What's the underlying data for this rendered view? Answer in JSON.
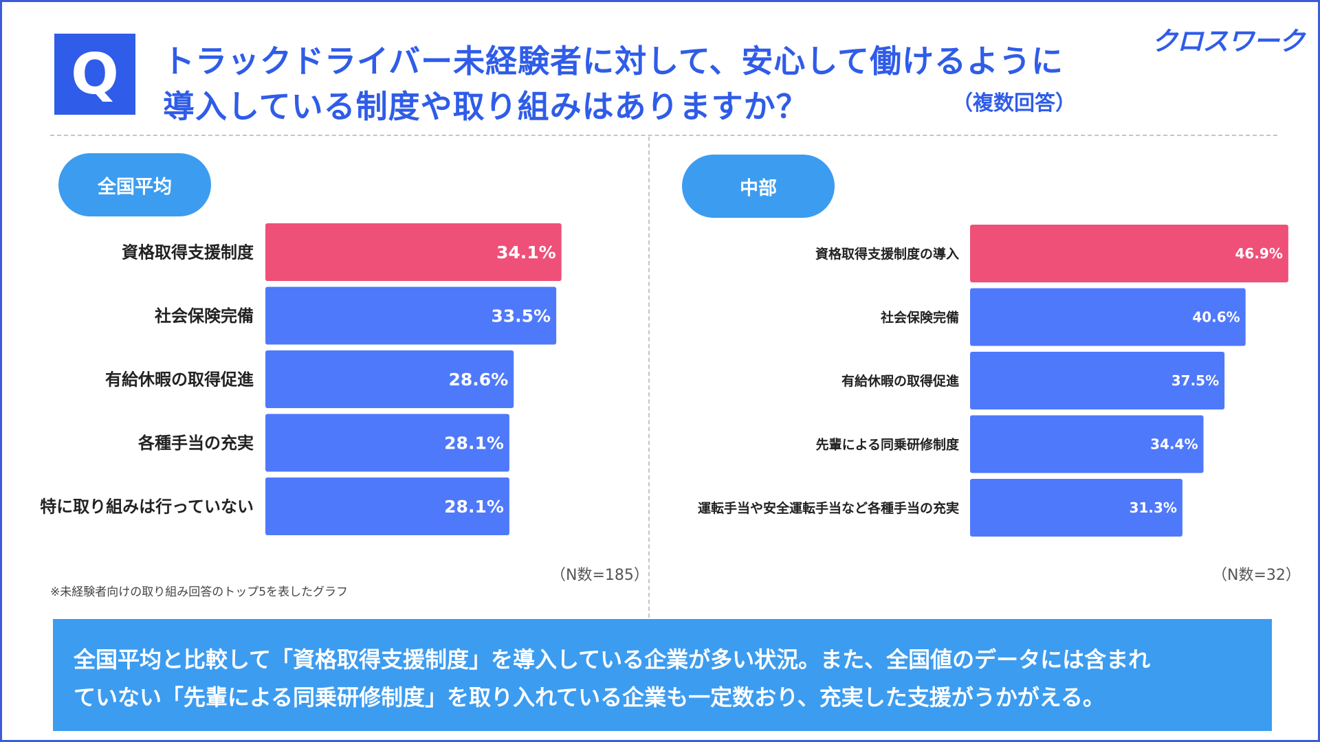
{
  "header": {
    "q_icon": "Q",
    "title_line1": "トラックドライバー未経験者に対して、安心して働けるように",
    "title_line2": "導入している制度や取り組みはありますか？",
    "title_note": "（複数回答）",
    "brand": "クロスワーク"
  },
  "colors": {
    "primary": "#2f5ce8",
    "highlight_bar": "#ef5078",
    "bar": "#4f79fb",
    "pill": "#3c9cf0"
  },
  "chart_data": [
    {
      "type": "bar",
      "orientation": "horizontal",
      "panel_label": "全国平均",
      "categories": [
        "資格取得支援制度",
        "社会保険完備",
        "有給休暇の取得促進",
        "各種手当の充実",
        "特に取り組みは行っていない"
      ],
      "values": [
        34.1,
        33.5,
        28.6,
        28.1,
        28.1
      ],
      "value_labels": [
        "34.1%",
        "33.5%",
        "28.6%",
        "28.1%",
        "28.1%"
      ],
      "highlight_index": 0,
      "n_label": "（N数=185）"
    },
    {
      "type": "bar",
      "orientation": "horizontal",
      "panel_label": "中部",
      "categories": [
        "資格取得支援制度の導入",
        "社会保険完備",
        "有給休暇の取得促進",
        "先輩による同乗研修制度",
        "運転手当や安全運転手当など各種手当の充実"
      ],
      "values": [
        46.9,
        40.6,
        37.5,
        34.4,
        31.3
      ],
      "value_labels": [
        "46.9%",
        "40.6%",
        "37.5%",
        "34.4%",
        "31.3%"
      ],
      "highlight_index": 0,
      "n_label": "（N数=32）"
    }
  ],
  "footnote": "※未経験者向けの取り組み回答のトップ5を表したグラフ",
  "summary": {
    "line1": "全国平均と比較して「資格取得支援制度」を導入している企業が多い状況。また、全国値のデータには含まれ",
    "line2": "ていない「先輩による同乗研修制度」を取り入れている企業も一定数おり、充実した支援がうかがえる。"
  }
}
